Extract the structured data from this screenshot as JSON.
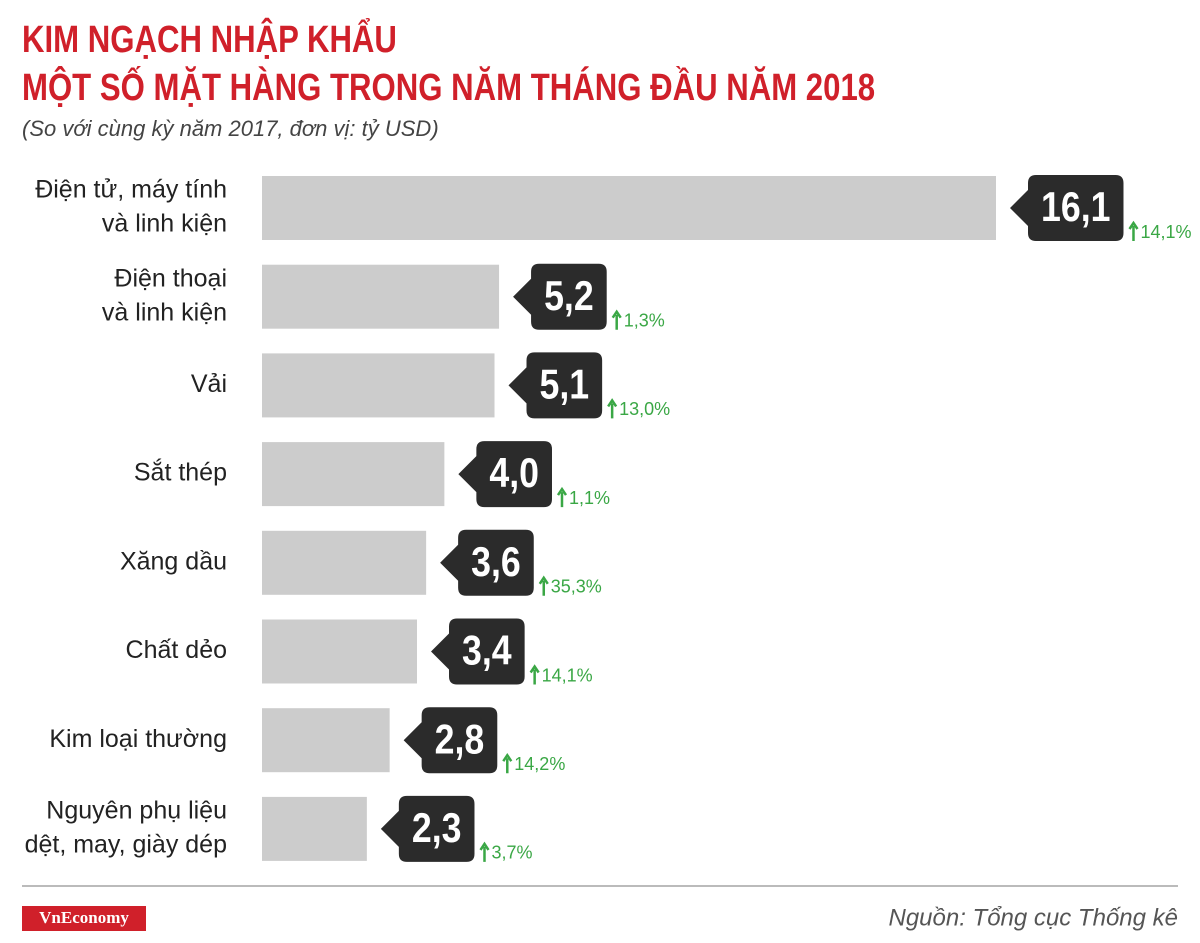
{
  "chart_data": {
    "type": "bar",
    "title": [
      "KIM NGẠCH NHẬP KHẨU",
      "MỘT SỐ MẶT HÀNG TRONG NĂM THÁNG ĐẦU NĂM 2018"
    ],
    "subtitle": "(So với cùng kỳ năm 2017, đơn vị: tỷ USD)",
    "categories": [
      [
        "Điện tử, máy tính",
        "và linh kiện"
      ],
      [
        "Điện thoại",
        "và linh kiện"
      ],
      [
        "Vải"
      ],
      [
        "Sắt thép"
      ],
      [
        "Xăng dầu"
      ],
      [
        "Chất dẻo"
      ],
      [
        "Kim loại thường"
      ],
      [
        "Nguyên phụ liệu",
        "dệt, may, giày dép"
      ]
    ],
    "values": [
      16.1,
      5.2,
      5.1,
      4.0,
      3.6,
      3.4,
      2.8,
      2.3
    ],
    "value_labels": [
      "16,1",
      "5,2",
      "5,1",
      "4,0",
      "3,6",
      "3,4",
      "2,8",
      "2,3"
    ],
    "color": "#cccccc",
    "growth": {
      "values": [
        14.1,
        1.3,
        13.0,
        1.1,
        35.3,
        14.1,
        14.2,
        3.7
      ],
      "value_labels": [
        "14,1%",
        "1,3%",
        "13,0%",
        "1,1%",
        "35,3%",
        "14,1%",
        "14,2%",
        "3,7%"
      ],
      "color": "#3aa745"
    },
    "brand": "VnEconomy",
    "source": "Nguồn: Tổng cục Thống kê"
  }
}
